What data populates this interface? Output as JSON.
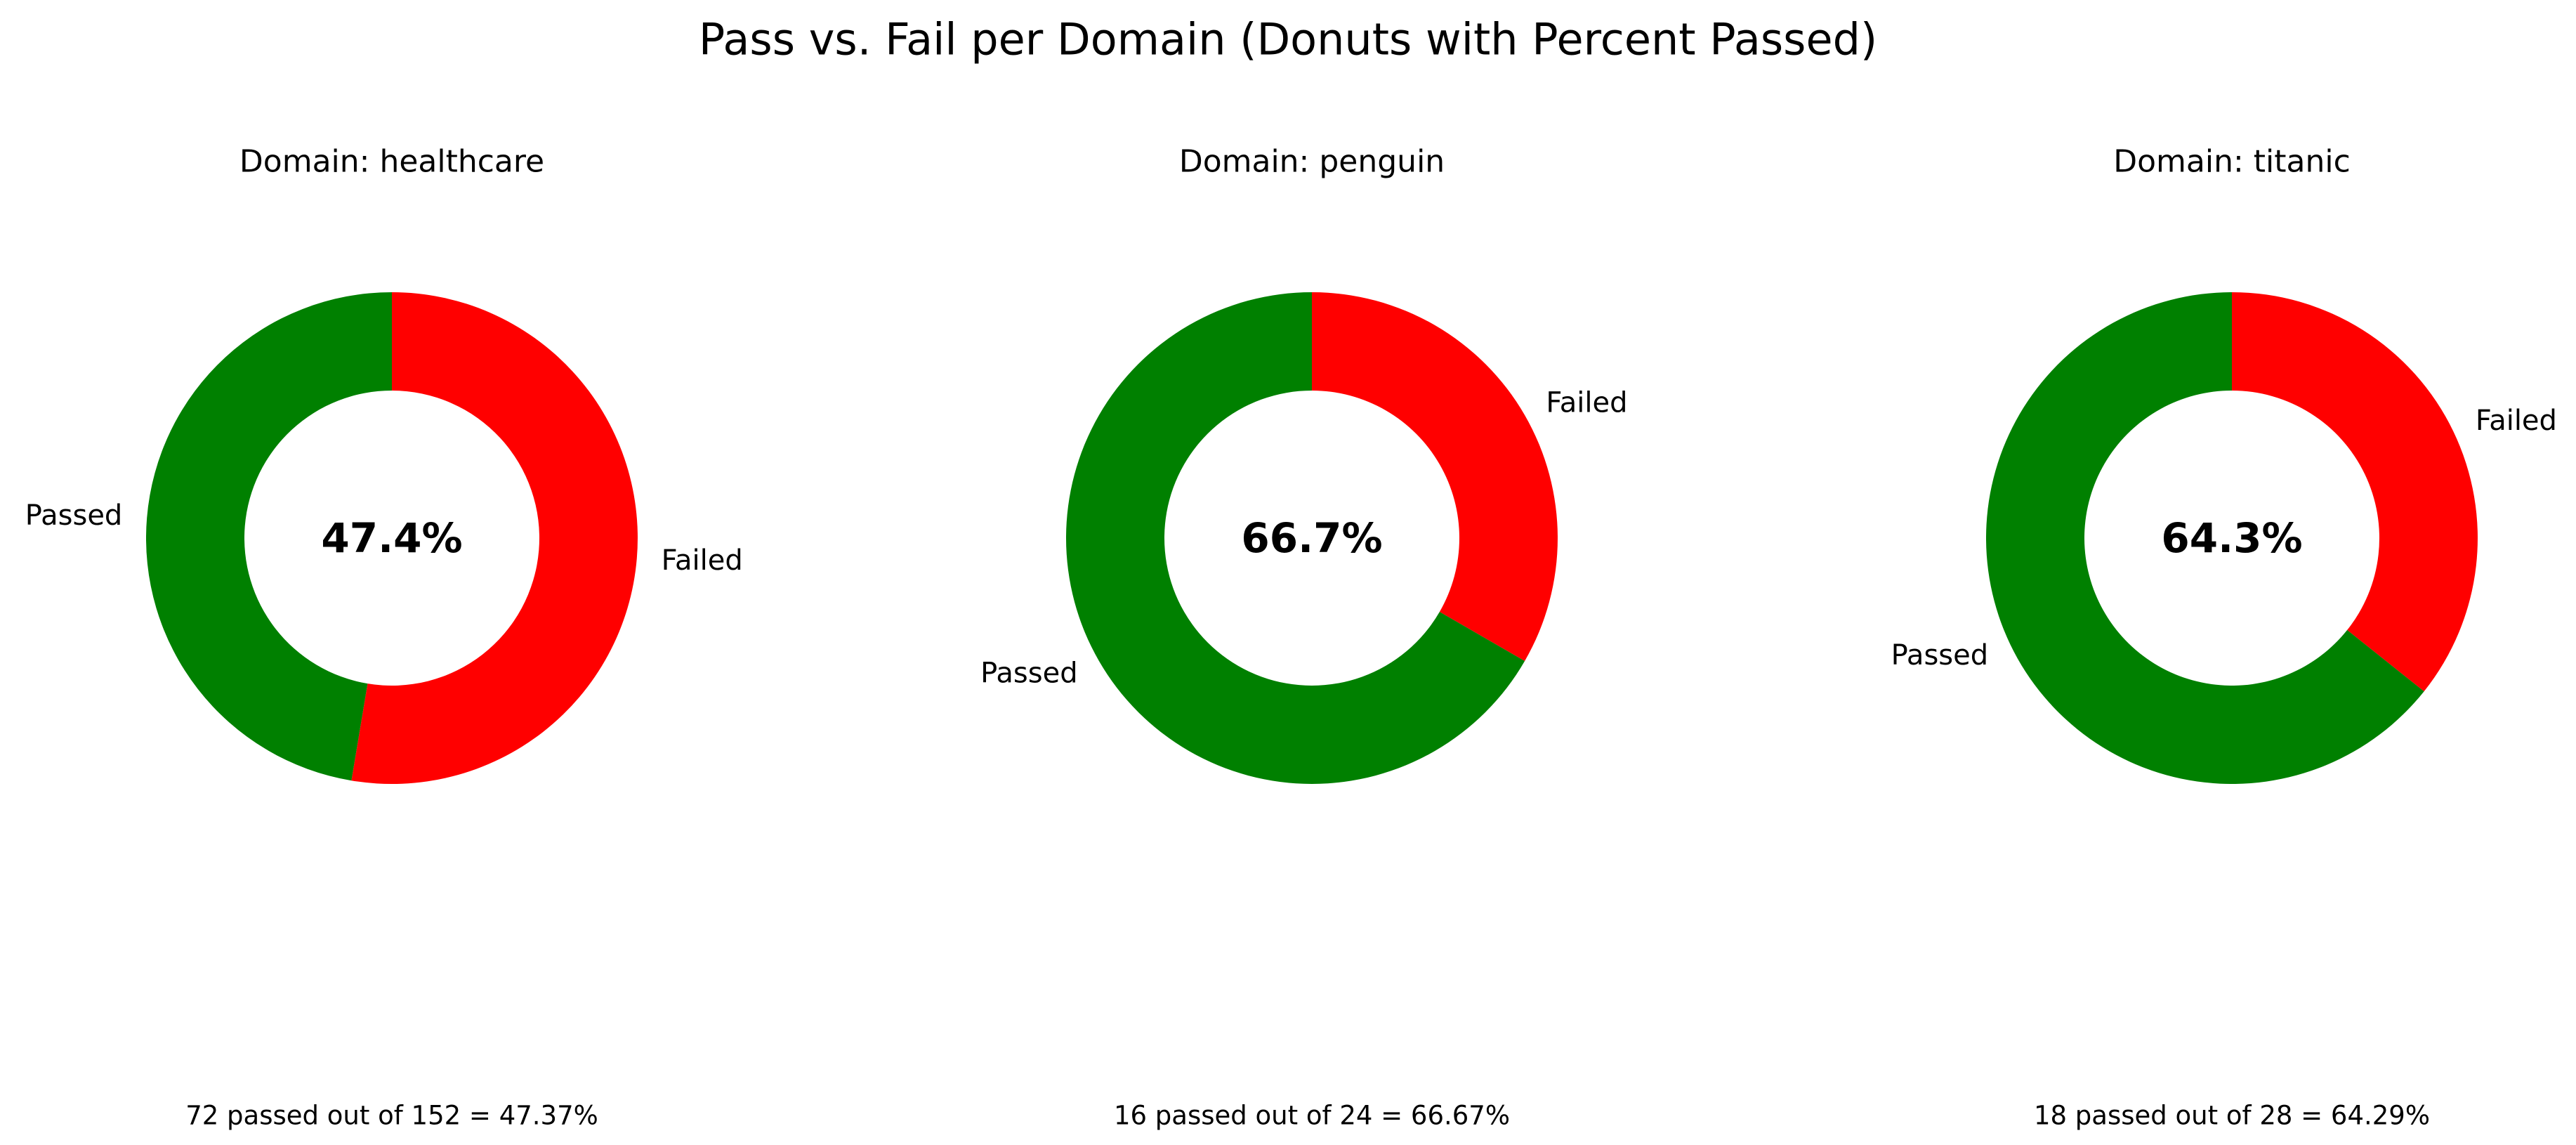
{
  "figure": {
    "suptitle": "Pass vs. Fail per Domain (Donuts with Percent Passed)"
  },
  "colors": {
    "passed": "#008000",
    "failed": "#ff0000",
    "hole": "#ffffff",
    "text": "#000000"
  },
  "chart_data": [
    {
      "type": "pie",
      "variant": "donut",
      "title": "Domain: healthcare",
      "slices": [
        {
          "label": "Failed",
          "value": 80
        },
        {
          "label": "Passed",
          "value": 72
        }
      ],
      "center_label": "47.4%",
      "footer": "72 passed out of 152 = 47.37%"
    },
    {
      "type": "pie",
      "variant": "donut",
      "title": "Domain: penguin",
      "slices": [
        {
          "label": "Failed",
          "value": 8
        },
        {
          "label": "Passed",
          "value": 16
        }
      ],
      "center_label": "66.7%",
      "footer": "16 passed out of 24 = 66.67%"
    },
    {
      "type": "pie",
      "variant": "donut",
      "title": "Domain: titanic",
      "slices": [
        {
          "label": "Failed",
          "value": 10
        },
        {
          "label": "Passed",
          "value": 18
        }
      ],
      "center_label": "64.3%",
      "footer": "18 passed out of 28 = 64.29%"
    }
  ]
}
